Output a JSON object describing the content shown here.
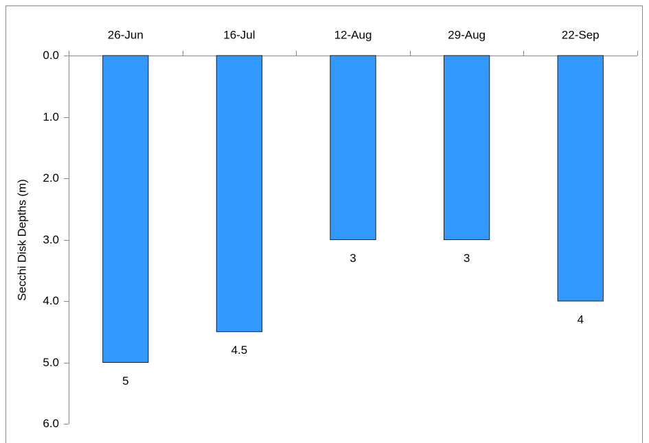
{
  "chart_data": {
    "type": "bar",
    "y_label": "Secchi Disk Depths (m)",
    "categories": [
      "26-Jun",
      "16-Jul",
      "12-Aug",
      "29-Aug",
      "22-Sep"
    ],
    "values": [
      5,
      4.5,
      3,
      3,
      4
    ],
    "color": "#3399ff",
    "ylim": [
      0,
      6
    ],
    "yticks": [
      {
        "value": 0,
        "label": "0.0"
      },
      {
        "value": 1,
        "label": "1.0"
      },
      {
        "value": 2,
        "label": "2.0"
      },
      {
        "value": 3,
        "label": "3.0"
      },
      {
        "value": 4,
        "label": "4.0"
      },
      {
        "value": 5,
        "label": "5.0"
      },
      {
        "value": 6,
        "label": "6.0"
      }
    ],
    "y_reversed": true,
    "x_axis_position": "top",
    "grid": false
  }
}
